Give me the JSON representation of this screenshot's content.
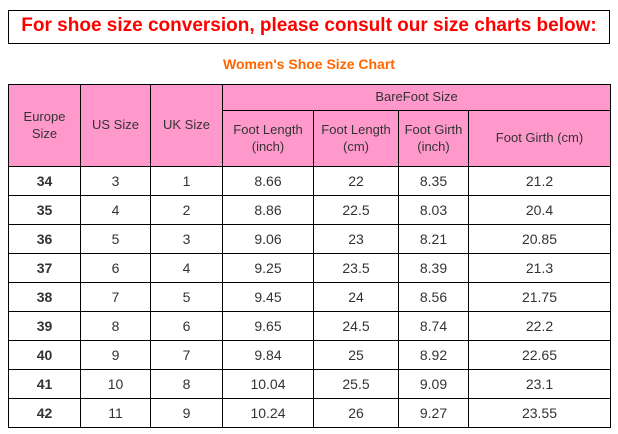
{
  "page": {
    "title": "For shoe size conversion, please consult our size charts below:",
    "subtitle": "Women's Shoe Size Chart"
  },
  "colors": {
    "title_red": "#ff0000",
    "subtitle_orange": "#ff6600",
    "header_pink": "#ff99cc",
    "border_black": "#000000"
  },
  "table": {
    "header": {
      "europe": "Europe Size",
      "us": "US Size",
      "uk": "UK Size",
      "barefoot_group": "BareFoot Size",
      "sub": [
        "Foot Length (inch)",
        "Foot Length (cm)",
        "Foot Girth (inch)",
        "Foot Girth (cm)"
      ]
    },
    "rows": [
      [
        "34",
        "3",
        "1",
        "8.66",
        "22",
        "8.35",
        "21.2"
      ],
      [
        "35",
        "4",
        "2",
        "8.86",
        "22.5",
        "8.03",
        "20.4"
      ],
      [
        "36",
        "5",
        "3",
        "9.06",
        "23",
        "8.21",
        "20.85"
      ],
      [
        "37",
        "6",
        "4",
        "9.25",
        "23.5",
        "8.39",
        "21.3"
      ],
      [
        "38",
        "7",
        "5",
        "9.45",
        "24",
        "8.56",
        "21.75"
      ],
      [
        "39",
        "8",
        "6",
        "9.65",
        "24.5",
        "8.74",
        "22.2"
      ],
      [
        "40",
        "9",
        "7",
        "9.84",
        "25",
        "8.92",
        "22.65"
      ],
      [
        "41",
        "10",
        "8",
        "10.04",
        "25.5",
        "9.09",
        "23.1"
      ],
      [
        "42",
        "11",
        "9",
        "10.24",
        "26",
        "9.27",
        "23.55"
      ]
    ]
  }
}
